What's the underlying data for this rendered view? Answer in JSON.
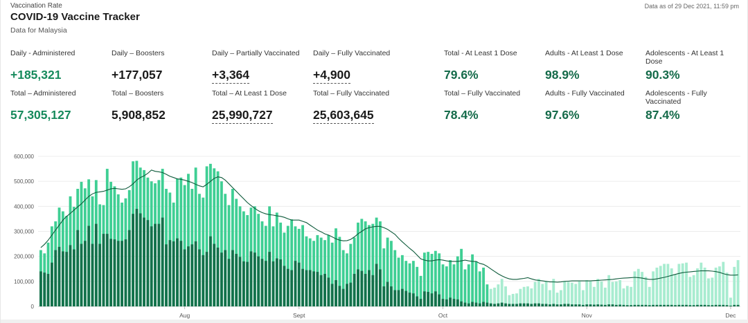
{
  "header": {
    "section_label": "Vaccination Rate",
    "title": "COVID-19 Vaccine Tracker",
    "subtitle": "Data for Malaysia",
    "as_of": "Data as of 29 Dec 2021, 11:59 pm"
  },
  "stats": {
    "daily_administered": {
      "label": "Daily - Administered",
      "value": "+185,321"
    },
    "daily_boosters": {
      "label": "Daily – Boosters",
      "value": "+177,057"
    },
    "daily_partial": {
      "label": "Daily – Partially Vaccinated",
      "value": "+3,364"
    },
    "daily_full": {
      "label": "Daily – Fully Vaccinated",
      "value": "+4,900"
    },
    "total_administered": {
      "label": "Total – Administered",
      "value": "57,305,127"
    },
    "total_boosters": {
      "label": "Total – Boosters",
      "value": "5,908,852"
    },
    "total_one_dose": {
      "label": "Total – At Least 1 Dose",
      "value": "25,990,727"
    },
    "total_full": {
      "label": "Total – Fully Vaccinated",
      "value": "25,603,645"
    },
    "pct_total_one_dose": {
      "label": "Total - At Least 1 Dose",
      "value": "79.6%"
    },
    "pct_adults_one_dose": {
      "label": "Adults - At Least 1 Dose",
      "value": "98.9%"
    },
    "pct_adol_one_dose": {
      "label": "Adolescents - At Least 1 Dose",
      "value": "90.3%"
    },
    "pct_total_full": {
      "label": "Total – Fully Vaccinated",
      "value": "78.4%"
    },
    "pct_adults_full": {
      "label": "Adults - Fully Vaccinated",
      "value": "97.6%"
    },
    "pct_adol_full": {
      "label": "Adolescents - Fully Vaccinated",
      "value": "87.4%"
    }
  },
  "colors": {
    "bar_light": "#3fcf94",
    "bar_dark": "#13714b",
    "bar_pale": "#a8ecd0",
    "line": "#0d5a3a",
    "green_value": "#168a5c"
  },
  "chart_data": {
    "type": "bar",
    "stacked": true,
    "ylim": [
      0,
      600000
    ],
    "y_ticks": [
      "0",
      "100,000",
      "200,000",
      "300,000",
      "400,000",
      "500,000",
      "600,000"
    ],
    "x_month_labels": [
      "Aug",
      "Sept",
      "Oct",
      "Nov",
      "Dec"
    ],
    "grid": true,
    "series": [],
    "totals": [
      225000,
      212000,
      255000,
      320000,
      340000,
      395000,
      380000,
      362000,
      440000,
      398000,
      470000,
      498000,
      472000,
      508000,
      440000,
      505000,
      408000,
      405000,
      550000,
      498000,
      480000,
      448000,
      415000,
      432000,
      465000,
      580000,
      582000,
      555000,
      545000,
      515000,
      500000,
      492000,
      505000,
      550000,
      470000,
      455000,
      415000,
      510000,
      515000,
      485000,
      530000,
      470000,
      555000,
      450000,
      435000,
      560000,
      570000,
      552000,
      540000,
      500000,
      450000,
      405000,
      470000,
      430000,
      400000,
      380000,
      365000,
      395000,
      400000,
      370000,
      340000,
      322000,
      400000,
      320000,
      375000,
      335000,
      295000,
      322000,
      348000,
      320000,
      310000,
      325000,
      280000,
      272000,
      262000,
      285000,
      275000,
      265000,
      285000,
      255000,
      312000,
      278000,
      225000,
      212000,
      250000,
      275000,
      335000,
      350000,
      340000,
      325000,
      330000,
      355000,
      340000,
      232000,
      275000,
      262000,
      225000,
      195000,
      205000,
      182000,
      172000,
      182000,
      158000,
      122000,
      215000,
      218000,
      210000,
      222000,
      212000,
      168000,
      160000,
      185000,
      168000,
      200000,
      230000,
      148000,
      168000,
      208000,
      180000,
      140000,
      155000,
      88000,
      70000,
      75000,
      88000,
      110000,
      80000,
      45000,
      50000,
      52000,
      70000,
      78000,
      80000,
      72000,
      98000,
      110000,
      90000,
      100000,
      65000,
      110000,
      55000,
      65000,
      100000,
      98000,
      95000,
      90000,
      100000,
      65000,
      105000,
      100000,
      78000,
      110000,
      100000,
      75000,
      125000,
      98000,
      100000,
      105000,
      72000,
      82000,
      78000,
      140000,
      150000,
      138000,
      118000,
      78000,
      140000,
      155000,
      162000,
      170000,
      170000,
      152000,
      128000,
      170000,
      172000,
      175000,
      118000,
      125000,
      152000,
      175000,
      155000,
      112000,
      115000,
      155000,
      160000,
      178000,
      135000,
      35000,
      158000,
      185000
    ],
    "dark_values": [
      140000,
      135000,
      130000,
      175000,
      225000,
      238000,
      220000,
      218000,
      245000,
      228000,
      305000,
      250000,
      262000,
      322000,
      250000,
      330000,
      250000,
      290000,
      290000,
      270000,
      268000,
      262000,
      262000,
      268000,
      305000,
      370000,
      390000,
      372000,
      355000,
      345000,
      320000,
      330000,
      330000,
      355000,
      248000,
      265000,
      260000,
      272000,
      262000,
      228000,
      240000,
      248000,
      260000,
      228000,
      205000,
      218000,
      280000,
      250000,
      235000,
      215000,
      225000,
      190000,
      225000,
      210000,
      198000,
      180000,
      178000,
      220000,
      215000,
      200000,
      190000,
      182000,
      218000,
      180000,
      192000,
      188000,
      162000,
      150000,
      145000,
      182000,
      175000,
      150000,
      145000,
      145000,
      140000,
      138000,
      125000,
      130000,
      115000,
      90000,
      105000,
      82000,
      70000,
      90000,
      95000,
      130000,
      148000,
      142000,
      130000,
      145000,
      125000,
      170000,
      148000,
      80000,
      98000,
      80000,
      65000,
      65000,
      70000,
      62000,
      55000,
      52000,
      40000,
      30000,
      60000,
      58000,
      52000,
      60000,
      48000,
      30000,
      28000,
      35000,
      30000,
      28000,
      20000,
      15000,
      12000,
      18000,
      15000,
      12000,
      18000,
      15000,
      12000,
      10000,
      12000,
      15000,
      12000,
      10000,
      10000,
      10000,
      12000,
      12000,
      12000,
      10000,
      12000,
      12000,
      10000,
      10000,
      8000,
      10000,
      8000,
      8000,
      10000,
      10000,
      8000,
      8000,
      8000,
      6000,
      8000,
      8000,
      7000,
      8000,
      7000,
      6000,
      8000,
      8000,
      6000,
      7000,
      6000,
      5000,
      5000,
      6000,
      6000,
      6000,
      6000,
      5000,
      6000,
      6000,
      6000,
      6000,
      6000,
      6000,
      5000,
      6000,
      6000,
      6000,
      5000,
      5000,
      6000,
      6000,
      6000,
      5000,
      5000,
      6000,
      6000,
      6000,
      5000,
      3000,
      6000,
      6000
    ],
    "moving_average": [
      235000,
      248000,
      265000,
      285000,
      305000,
      325000,
      345000,
      360000,
      372000,
      385000,
      398000,
      410000,
      425000,
      440000,
      450000,
      456000,
      458000,
      460000,
      465000,
      470000,
      472000,
      470000,
      468000,
      470000,
      478000,
      490000,
      505000,
      515000,
      522000,
      532000,
      545000,
      540000,
      538000,
      535000,
      528000,
      520000,
      515000,
      510000,
      508000,
      505000,
      500000,
      495000,
      488000,
      482000,
      478000,
      488000,
      500000,
      512000,
      518000,
      515000,
      505000,
      490000,
      475000,
      460000,
      445000,
      430000,
      415000,
      403000,
      392000,
      382000,
      375000,
      370000,
      367000,
      365000,
      362000,
      360000,
      356000,
      350000,
      345000,
      345000,
      345000,
      340000,
      335000,
      325000,
      315000,
      305000,
      298000,
      290000,
      285000,
      278000,
      270000,
      265000,
      262000,
      263000,
      268000,
      278000,
      290000,
      300000,
      310000,
      315000,
      318000,
      320000,
      320000,
      315000,
      308000,
      298000,
      288000,
      272000,
      258000,
      245000,
      232000,
      220000,
      205000,
      190000,
      185000,
      182000,
      182000,
      185000,
      187000,
      185000,
      182000,
      180000,
      180000,
      180000,
      182000,
      185000,
      182000,
      180000,
      180000,
      172000,
      168000,
      160000,
      150000,
      140000,
      130000,
      122000,
      115000,
      110000,
      108000,
      108000,
      110000,
      112000,
      115000,
      110000,
      106000,
      104000,
      102000,
      100000,
      98000,
      98000,
      97000,
      98000,
      100000,
      101000,
      102000,
      102000,
      102000,
      102000,
      102000,
      102000,
      103000,
      104000,
      105000,
      106000,
      107000,
      108000,
      110000,
      112000,
      113000,
      114000,
      115000,
      116000,
      115000,
      113000,
      110000,
      108000,
      108000,
      110000,
      113000,
      116000,
      120000,
      124000,
      128000,
      132000,
      135000,
      137000,
      138000,
      140000,
      141000,
      142000,
      142000,
      142000,
      141000,
      139000,
      136000,
      131000,
      127000,
      125000,
      125000,
      126000
    ]
  }
}
